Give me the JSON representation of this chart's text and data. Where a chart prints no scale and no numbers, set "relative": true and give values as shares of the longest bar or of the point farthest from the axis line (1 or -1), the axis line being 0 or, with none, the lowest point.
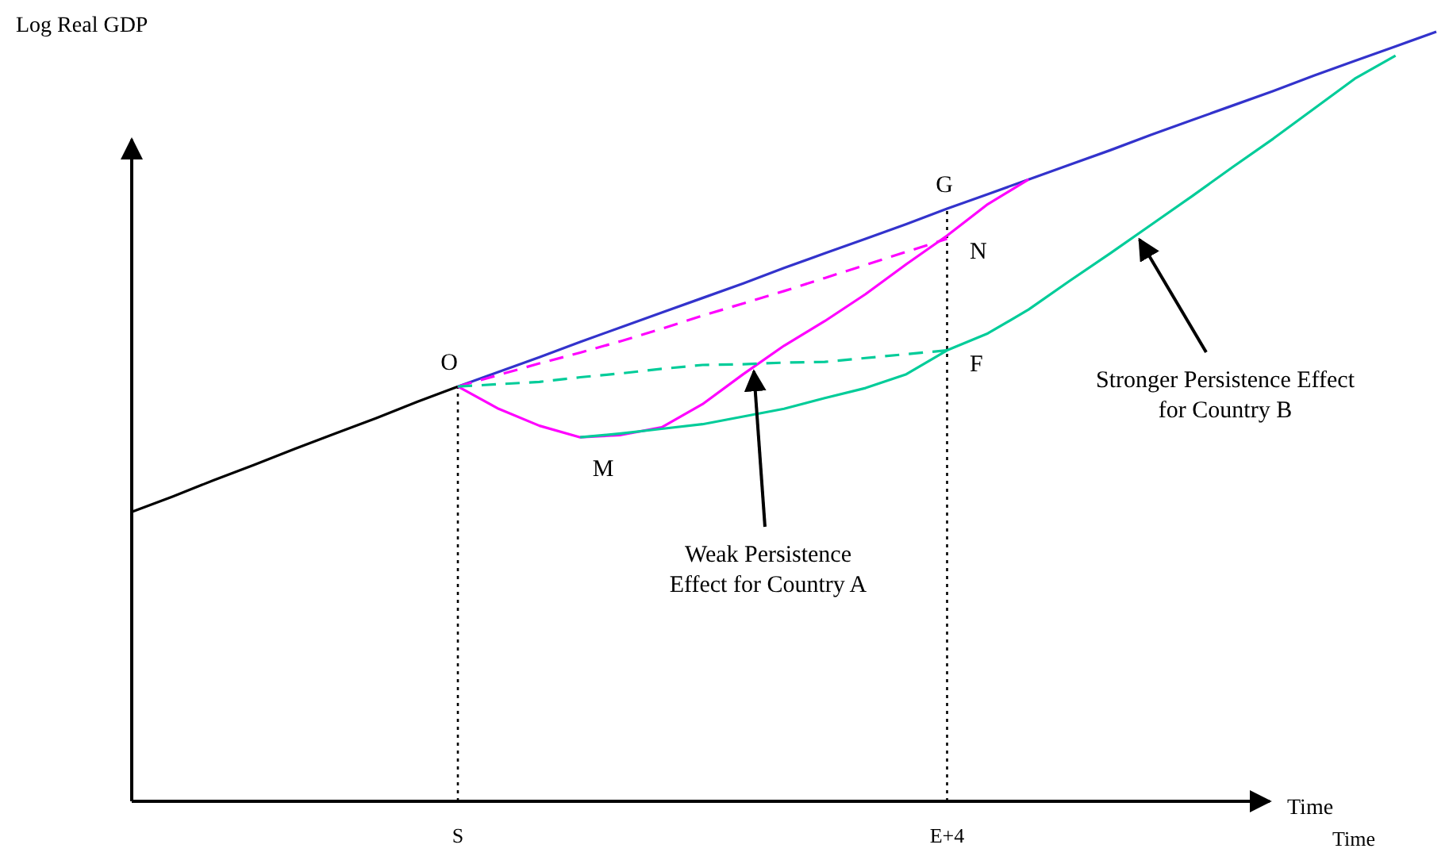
{
  "chart_data": {
    "type": "line",
    "relative": true,
    "ylabel": "Log Real GDP",
    "xlabel": "Time",
    "categories": [
      null,
      null,
      null,
      null,
      null,
      null,
      null,
      null,
      "S",
      null,
      null,
      null,
      null,
      null,
      null,
      null,
      null,
      null,
      null,
      null,
      "E+4",
      null,
      null,
      null,
      null,
      null,
      null,
      null,
      null,
      null,
      null,
      null,
      null
    ],
    "grid": false,
    "marker": "none",
    "series": [
      {
        "color": "#000000",
        "line_style": "solid",
        "values": [
          0.376,
          0.396,
          0.417,
          0.437,
          0.458,
          0.478,
          0.498,
          0.519,
          0.539,
          null,
          null,
          null,
          null,
          null,
          null,
          null,
          null,
          null,
          null,
          null,
          null,
          null,
          null,
          null,
          null,
          null,
          null,
          null,
          null,
          null,
          null,
          null,
          null
        ]
      },
      {
        "color": "#3333cc",
        "line_style": "solid",
        "values": [
          null,
          null,
          null,
          null,
          null,
          null,
          null,
          null,
          0.539,
          0.558,
          0.577,
          0.597,
          0.616,
          0.635,
          0.654,
          0.673,
          0.693,
          0.712,
          0.731,
          0.75,
          0.77,
          0.789,
          0.808,
          0.827,
          0.846,
          0.866,
          0.885,
          0.904,
          0.923,
          0.943,
          0.962,
          0.981,
          1.0
        ]
      },
      {
        "color": "#ff00ff",
        "line_style": "solid",
        "values": [
          null,
          null,
          null,
          null,
          null,
          null,
          null,
          null,
          0.539,
          0.51,
          0.488,
          0.473,
          0.476,
          0.486,
          0.516,
          0.555,
          0.592,
          0.624,
          0.659,
          0.698,
          0.735,
          0.776,
          0.808,
          null,
          null,
          null,
          null,
          null,
          null,
          null,
          null,
          null,
          null
        ]
      },
      {
        "color": "#ff00ff",
        "line_style": "dashed",
        "values": [
          null,
          null,
          null,
          null,
          null,
          null,
          null,
          null,
          0.539,
          0.554,
          0.569,
          0.583,
          0.598,
          0.614,
          0.631,
          0.647,
          0.663,
          0.68,
          0.697,
          0.714,
          0.731,
          null,
          null,
          null,
          null,
          null,
          null,
          null,
          null,
          null,
          null,
          null,
          null
        ]
      },
      {
        "color": "#00cc99",
        "line_style": "dashed",
        "values": [
          null,
          null,
          null,
          null,
          null,
          null,
          null,
          null,
          0.539,
          0.542,
          0.545,
          0.551,
          0.556,
          0.562,
          0.567,
          0.568,
          0.57,
          0.571,
          0.576,
          0.581,
          0.586,
          null,
          null,
          null,
          null,
          null,
          null,
          null,
          null,
          null,
          null,
          null,
          null
        ]
      },
      {
        "color": "#00cc99",
        "line_style": "solid",
        "values": [
          null,
          null,
          null,
          null,
          null,
          null,
          null,
          null,
          null,
          null,
          null,
          0.473,
          0.478,
          0.484,
          0.49,
          0.5,
          0.51,
          0.524,
          0.537,
          0.555,
          0.586,
          0.608,
          0.639,
          0.676,
          0.712,
          0.749,
          0.786,
          0.824,
          0.861,
          0.9,
          0.939,
          0.969,
          null
        ]
      }
    ],
    "annotations": [
      "O",
      "M",
      "G",
      "N",
      "F",
      "Weak Persistence\nEffect for Country A",
      "Stronger Persistence Effect\nfor Country B",
      "Time"
    ]
  }
}
